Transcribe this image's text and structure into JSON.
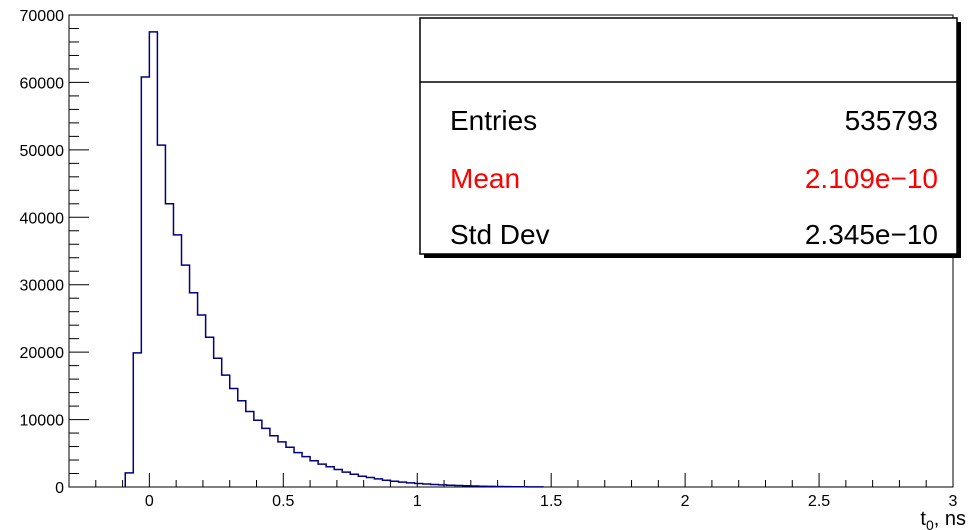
{
  "chart_data": {
    "type": "histogram",
    "title": "",
    "xlabel": "t",
    "xlabel_sub": "0",
    "xlabel_suffix": ", ns",
    "ylabel": "",
    "xlim": [
      -0.3,
      3.0
    ],
    "ylim": [
      0,
      70000
    ],
    "grid": false,
    "line_color": "#000080",
    "x_ticks": [
      0,
      0.5,
      1,
      1.5,
      2,
      2.5,
      3
    ],
    "x_tick_labels": [
      "0",
      "0.5",
      "1",
      "1.5",
      "2",
      "2.5",
      "3"
    ],
    "y_ticks": [
      0,
      10000,
      20000,
      30000,
      40000,
      50000,
      60000,
      70000
    ],
    "y_tick_labels": [
      "0",
      "10000",
      "20000",
      "30000",
      "40000",
      "50000",
      "60000",
      "70000"
    ],
    "bin_width": 0.03,
    "bin_start": -0.09,
    "values": [
      2100,
      19900,
      60800,
      67500,
      50700,
      42000,
      37400,
      32900,
      28800,
      25500,
      22200,
      19100,
      16600,
      14600,
      12800,
      11200,
      9900,
      8700,
      7600,
      6700,
      5900,
      5100,
      4500,
      3900,
      3400,
      3000,
      2600,
      2200,
      1900,
      1600,
      1400,
      1200,
      1000,
      850,
      720,
      610,
      520,
      440,
      370,
      310,
      260,
      220,
      180,
      150,
      120,
      100,
      80,
      60,
      40,
      30,
      20,
      10
    ],
    "stats_box": {
      "title": "",
      "rows": [
        {
          "label": "Entries",
          "value": "535793",
          "color": "#000000"
        },
        {
          "label": "Mean",
          "value": "2.109e−10",
          "color": "#ff0000"
        },
        {
          "label": "Std Dev",
          "value": "2.345e−10",
          "color": "#000000"
        }
      ]
    }
  }
}
